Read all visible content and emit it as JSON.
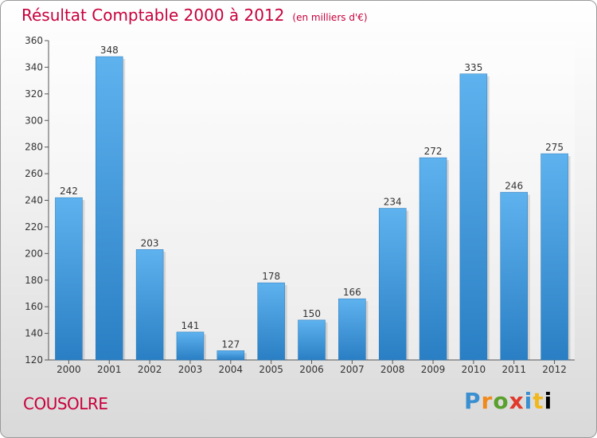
{
  "header": {
    "title": "Résultat Comptable 2000 à 2012",
    "unit": "(en milliers d'€)"
  },
  "commune": "COUSOLRE",
  "logo": {
    "letters": [
      "P",
      "r",
      "o",
      "x",
      "i",
      "t",
      "i"
    ]
  },
  "colors": {
    "bar": "#3d98dd",
    "title": "#c8003c"
  },
  "chart_data": {
    "type": "bar",
    "title": "Résultat Comptable 2000 à 2012",
    "categories": [
      "2000",
      "2001",
      "2002",
      "2003",
      "2004",
      "2005",
      "2006",
      "2007",
      "2008",
      "2009",
      "2010",
      "2011",
      "2012"
    ],
    "values": [
      242,
      348,
      203,
      141,
      127,
      178,
      150,
      166,
      234,
      272,
      335,
      246,
      275
    ],
    "ylim": [
      120,
      360
    ],
    "yticks": [
      120,
      140,
      160,
      180,
      200,
      220,
      240,
      260,
      280,
      300,
      320,
      340,
      360
    ],
    "grid": false,
    "legend": "none"
  }
}
